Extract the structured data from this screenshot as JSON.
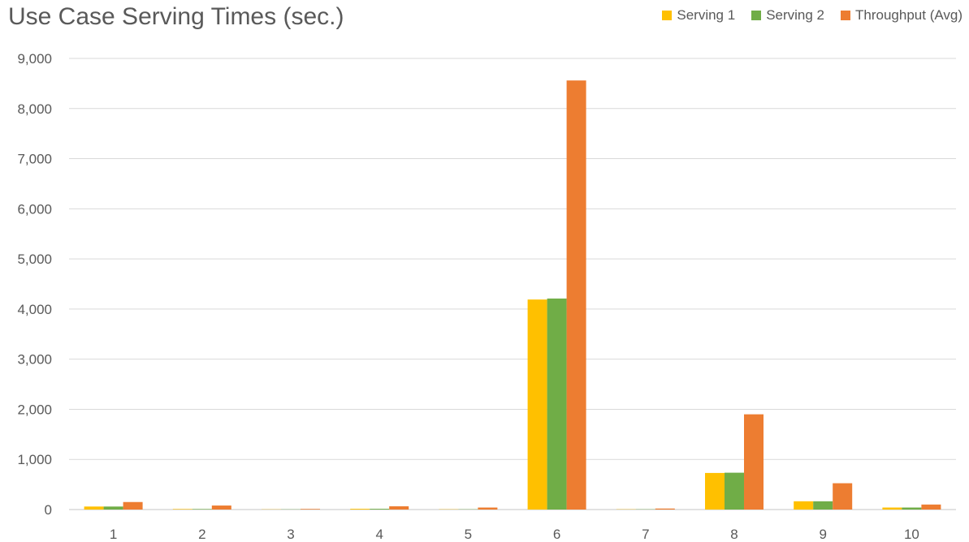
{
  "chart_data": {
    "type": "bar",
    "title": "Use Case Serving Times (sec.)",
    "xlabel": "",
    "ylabel": "",
    "categories": [
      "1",
      "2",
      "3",
      "4",
      "5",
      "6",
      "7",
      "8",
      "9",
      "10"
    ],
    "series": [
      {
        "name": "Serving 1",
        "color": "#FFC000",
        "values": [
          60,
          10,
          4,
          15,
          5,
          4190,
          5,
          730,
          165,
          40
        ]
      },
      {
        "name": "Serving 2",
        "color": "#70AD47",
        "values": [
          60,
          10,
          4,
          15,
          5,
          4210,
          5,
          735,
          165,
          40
        ]
      },
      {
        "name": "Throughput (Avg)",
        "color": "#ED7D31",
        "values": [
          150,
          80,
          12,
          65,
          40,
          8560,
          20,
          1900,
          525,
          100
        ]
      }
    ],
    "ylim": [
      0,
      9000
    ],
    "yticks": [
      0,
      1000,
      2000,
      3000,
      4000,
      5000,
      6000,
      7000,
      8000,
      9000
    ],
    "ytick_labels": [
      "0",
      "1,000",
      "2,000",
      "3,000",
      "4,000",
      "5,000",
      "6,000",
      "7,000",
      "8,000",
      "9,000"
    ],
    "grid": true,
    "legend_position": "top-right"
  }
}
